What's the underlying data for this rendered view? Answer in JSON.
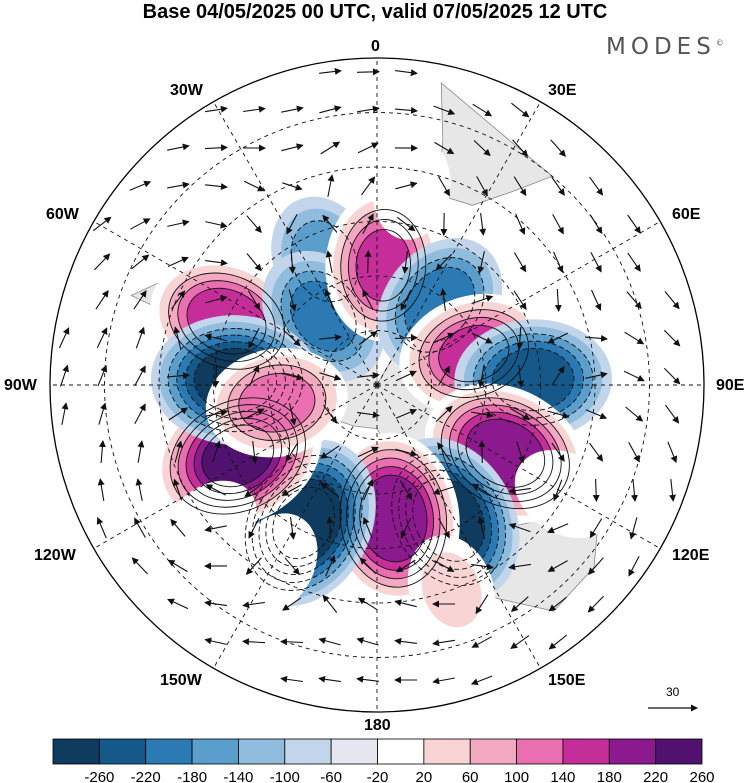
{
  "title": "Base 04/05/2025 00 UTC, valid 07/05/2025 12 UTC",
  "logo": "MODES",
  "logo_mark": "©",
  "longitude_labels": {
    "top": "0",
    "e30": "30E",
    "e60": "60E",
    "e90": "90E",
    "e120": "120E",
    "e150": "150E",
    "bottom": "180",
    "w150": "150W",
    "w120": "120W",
    "w90": "90W",
    "w60": "60W",
    "w30": "30W"
  },
  "vector_reference": "30",
  "colorbar": {
    "ticks": [
      "-260",
      "-220",
      "-180",
      "-140",
      "-100",
      "-60",
      "-20",
      "20",
      "60",
      "100",
      "140",
      "180",
      "220",
      "260"
    ],
    "colors": [
      "#0f3b5e",
      "#15598a",
      "#2b7ab3",
      "#5b9dcb",
      "#90bcdd",
      "#c3d5ea",
      "#e6e6f1",
      "#ffffff",
      "#f9d4d4",
      "#f3a9c0",
      "#e96fb0",
      "#c52d98",
      "#8c1a8e",
      "#50116f"
    ]
  },
  "anomalies": [
    {
      "lon": -67,
      "lat": -45,
      "value": 200
    },
    {
      "lon": -23,
      "lat": -53,
      "value": -120
    },
    {
      "lon": -38,
      "lat": -66,
      "value": -150
    },
    {
      "lon": 3,
      "lat": -57,
      "value": 180
    },
    {
      "lon": 38,
      "lat": -62,
      "value": -160
    },
    {
      "lon": 72,
      "lat": -62,
      "value": 180
    },
    {
      "lon": 88,
      "lat": -47,
      "value": -200
    },
    {
      "lon": 118,
      "lat": -50,
      "value": 240
    },
    {
      "lon": 152,
      "lat": -48,
      "value": -250
    },
    {
      "lon": 173,
      "lat": -53,
      "value": 250
    },
    {
      "lon": -152,
      "lat": -47,
      "value": -260
    },
    {
      "lon": -117,
      "lat": -47,
      "value": 260
    },
    {
      "lon": -88,
      "lat": -51,
      "value": -240
    },
    {
      "lon": -100,
      "lat": -62,
      "value": 150
    },
    {
      "lon": 10,
      "lat": -35,
      "value": 40
    },
    {
      "lon": 120,
      "lat": -30,
      "value": 50
    },
    {
      "lon": 160,
      "lat": -30,
      "value": 60
    },
    {
      "lon": -150,
      "lat": -33,
      "value": 50
    },
    {
      "lon": -130,
      "lat": -30,
      "value": 40
    }
  ]
}
